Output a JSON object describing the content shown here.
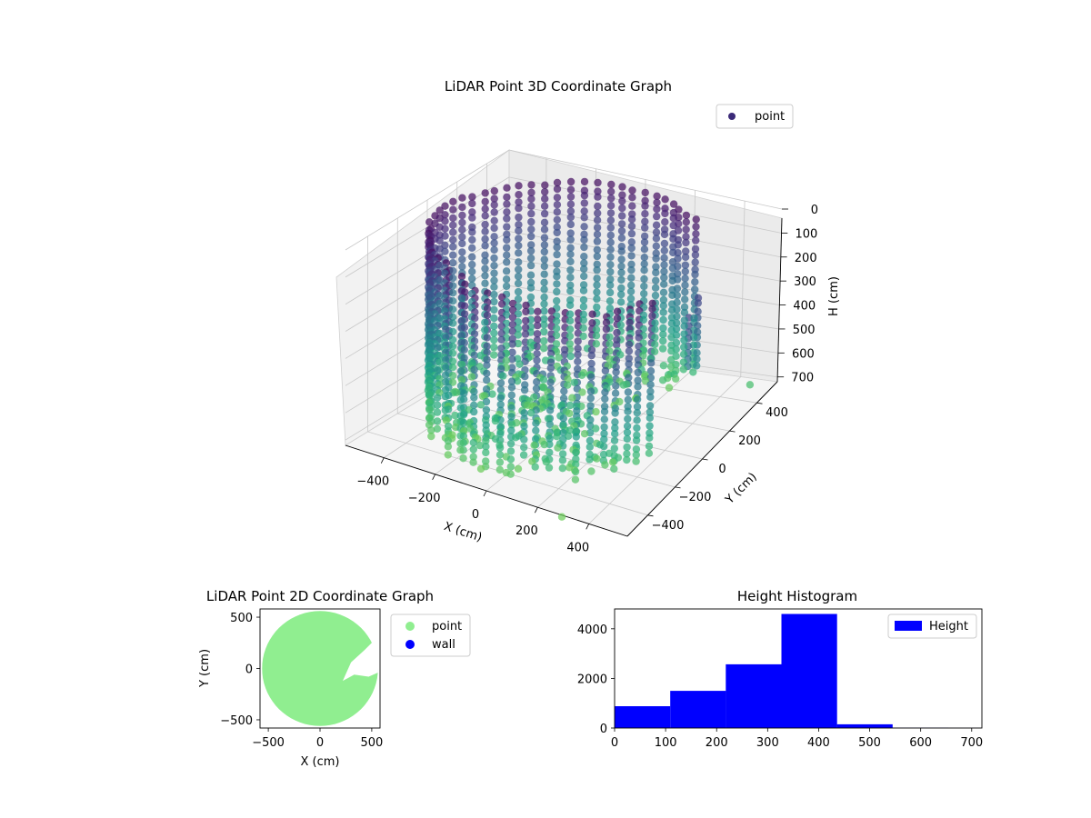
{
  "chart_data": [
    {
      "type": "scatter",
      "projection": "3d",
      "title": "LiDAR Point 3D Coordinate Graph",
      "xlabel": "X (cm)",
      "ylabel": "Y (cm)",
      "zlabel": "H (cm)",
      "xticks": [
        -400,
        -200,
        0,
        200,
        400
      ],
      "yticks": [
        -400,
        -200,
        0,
        200,
        400
      ],
      "zticks": [
        0,
        100,
        200,
        300,
        400,
        500,
        600,
        700
      ],
      "xlim": [
        -550,
        550
      ],
      "ylim": [
        -550,
        550
      ],
      "zlim": [
        0,
        720
      ],
      "z_inverted": true,
      "colormap": "viridis",
      "grid": true,
      "legend": {
        "position": "top-right",
        "entries": [
          {
            "name": "point",
            "color": "#3b2a78"
          }
        ]
      },
      "description_of_points": "cylindrical wall of points, radius ~470 cm, heights 0-720 cm, with an opening toward +X",
      "outliers": [
        {
          "x": 120,
          "y": -380,
          "h": 300
        },
        {
          "x": 520,
          "y": 400,
          "h": 650
        },
        {
          "x": 300,
          "y": -560,
          "h": 720
        }
      ]
    },
    {
      "type": "scatter",
      "title": "LiDAR Point 2D Coordinate Graph",
      "xlabel": "X (cm)",
      "ylabel": "Y (cm)",
      "xticks": [
        -500,
        0,
        500
      ],
      "yticks": [
        500,
        0,
        -500
      ],
      "xlim": [
        -580,
        580
      ],
      "ylim": [
        -580,
        580
      ],
      "legend": {
        "position": "outside-right",
        "entries": [
          {
            "name": "point",
            "color": "#90ee90"
          },
          {
            "name": "wall",
            "color": "#0000ff"
          }
        ]
      }
    },
    {
      "type": "bar",
      "histogram": true,
      "title": "Height Histogram",
      "xticks": [
        0,
        100,
        200,
        300,
        400,
        500,
        600,
        700
      ],
      "yticks": [
        0,
        2000,
        4000
      ],
      "xlim": [
        0,
        720
      ],
      "ylim": [
        0,
        4800
      ],
      "bin_edges": [
        0,
        109,
        218,
        327,
        436,
        545,
        654,
        720
      ],
      "values": [
        880,
        1500,
        2570,
        4600,
        150,
        10,
        5
      ],
      "color": "#0000ff",
      "legend": {
        "position": "top-right",
        "entries": [
          {
            "name": "Height",
            "color": "#0000ff"
          }
        ]
      }
    }
  ]
}
